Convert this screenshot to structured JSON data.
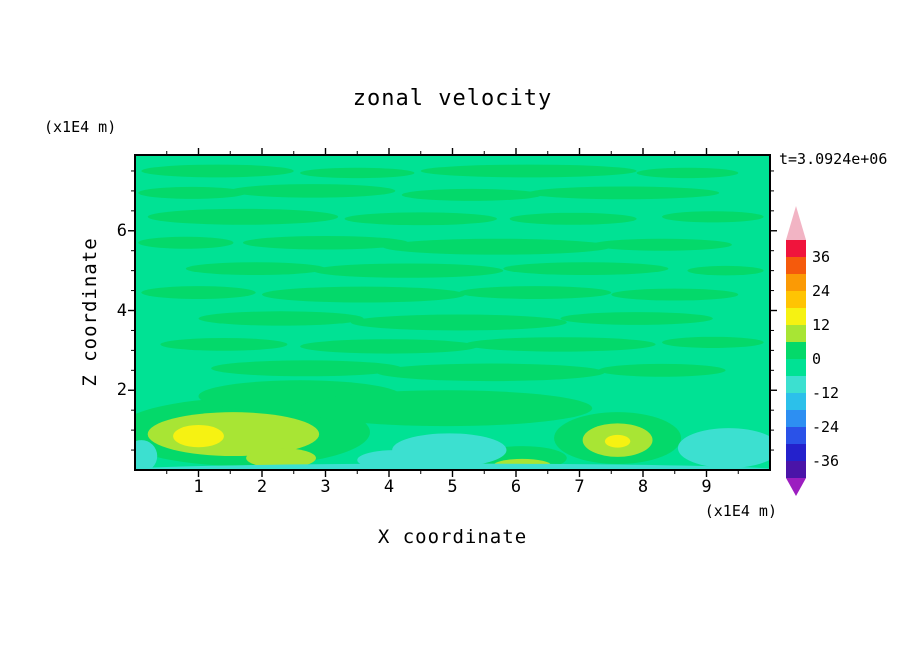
{
  "title": "zonal velocity",
  "time_label": "t=3.0924e+06",
  "axes": {
    "x_label": "X coordinate",
    "x_unit_label": "(x1E4 m)",
    "y_label": "Z coordinate",
    "y_unit_label": "(x1E4 m)",
    "x_ticks": [
      1,
      2,
      3,
      4,
      5,
      6,
      7,
      8,
      9
    ],
    "y_ticks": [
      2,
      4,
      6
    ]
  },
  "colorbar": {
    "labels": [
      "36",
      "24",
      "12",
      "0",
      "-12",
      "-24",
      "-36"
    ],
    "band_colors": [
      "#f0143c",
      "#f55a0c",
      "#fb9a05",
      "#ffc403",
      "#f6f212",
      "#a8e534",
      "#04d96a",
      "#00e294",
      "#3ce0d0",
      "#2cc0ea",
      "#2d8ff2",
      "#2a52e8",
      "#2421cc",
      "#4a14a8"
    ],
    "arrow_top_color": "#f2b4c4",
    "arrow_bottom_color": "#9c1ec0"
  },
  "chart_data": {
    "type": "heatmap",
    "title": "zonal velocity",
    "xlabel": "X coordinate (x1E4 m)",
    "ylabel": "Z coordinate (x1E4 m)",
    "time": "t=3.0924e+06",
    "xlim": [
      0,
      10
    ],
    "ylim": [
      0,
      7.9
    ],
    "contour_interval": 6,
    "contour_levels": [
      -42,
      -36,
      -30,
      -24,
      -18,
      -12,
      -6,
      0,
      6,
      12,
      18,
      24,
      30,
      36,
      42
    ],
    "legend_position": "right",
    "background_value": -3,
    "regions": [
      {
        "x": 1.3,
        "z": 7.5,
        "rx": 1.2,
        "rz": 0.16,
        "value": 3
      },
      {
        "x": 3.5,
        "z": 7.45,
        "rx": 0.9,
        "rz": 0.13,
        "value": 3
      },
      {
        "x": 6.2,
        "z": 7.5,
        "rx": 1.7,
        "rz": 0.16,
        "value": 3
      },
      {
        "x": 8.7,
        "z": 7.45,
        "rx": 0.8,
        "rz": 0.13,
        "value": 3
      },
      {
        "x": 0.9,
        "z": 6.95,
        "rx": 0.85,
        "rz": 0.15,
        "value": 3
      },
      {
        "x": 2.8,
        "z": 7.0,
        "rx": 1.3,
        "rz": 0.17,
        "value": 3
      },
      {
        "x": 5.3,
        "z": 6.9,
        "rx": 1.1,
        "rz": 0.15,
        "value": 3
      },
      {
        "x": 7.7,
        "z": 6.95,
        "rx": 1.5,
        "rz": 0.16,
        "value": 3
      },
      {
        "x": 1.7,
        "z": 6.35,
        "rx": 1.5,
        "rz": 0.2,
        "value": 3
      },
      {
        "x": 4.5,
        "z": 6.3,
        "rx": 1.2,
        "rz": 0.16,
        "value": 3
      },
      {
        "x": 6.9,
        "z": 6.3,
        "rx": 1.0,
        "rz": 0.15,
        "value": 3
      },
      {
        "x": 9.1,
        "z": 6.35,
        "rx": 0.8,
        "rz": 0.14,
        "value": 3
      },
      {
        "x": 0.8,
        "z": 5.7,
        "rx": 0.75,
        "rz": 0.15,
        "value": 3
      },
      {
        "x": 3.0,
        "z": 5.7,
        "rx": 1.3,
        "rz": 0.17,
        "value": 3
      },
      {
        "x": 5.7,
        "z": 5.6,
        "rx": 1.8,
        "rz": 0.2,
        "value": 3
      },
      {
        "x": 8.3,
        "z": 5.65,
        "rx": 1.1,
        "rz": 0.15,
        "value": 3
      },
      {
        "x": 1.9,
        "z": 5.05,
        "rx": 1.1,
        "rz": 0.16,
        "value": 3
      },
      {
        "x": 4.3,
        "z": 5.0,
        "rx": 1.5,
        "rz": 0.18,
        "value": 3
      },
      {
        "x": 7.1,
        "z": 5.05,
        "rx": 1.3,
        "rz": 0.16,
        "value": 3
      },
      {
        "x": 9.3,
        "z": 5.0,
        "rx": 0.6,
        "rz": 0.12,
        "value": 3
      },
      {
        "x": 1.0,
        "z": 4.45,
        "rx": 0.9,
        "rz": 0.16,
        "value": 3
      },
      {
        "x": 3.6,
        "z": 4.4,
        "rx": 1.6,
        "rz": 0.2,
        "value": 3
      },
      {
        "x": 6.3,
        "z": 4.45,
        "rx": 1.2,
        "rz": 0.16,
        "value": 3
      },
      {
        "x": 8.5,
        "z": 4.4,
        "rx": 1.0,
        "rz": 0.15,
        "value": 3
      },
      {
        "x": 2.3,
        "z": 3.8,
        "rx": 1.3,
        "rz": 0.18,
        "value": 3
      },
      {
        "x": 5.1,
        "z": 3.7,
        "rx": 1.7,
        "rz": 0.2,
        "value": 3
      },
      {
        "x": 7.9,
        "z": 3.8,
        "rx": 1.2,
        "rz": 0.16,
        "value": 3
      },
      {
        "x": 1.4,
        "z": 3.15,
        "rx": 1.0,
        "rz": 0.16,
        "value": 3
      },
      {
        "x": 4.0,
        "z": 3.1,
        "rx": 1.4,
        "rz": 0.18,
        "value": 3
      },
      {
        "x": 6.7,
        "z": 3.15,
        "rx": 1.5,
        "rz": 0.18,
        "value": 3
      },
      {
        "x": 9.1,
        "z": 3.2,
        "rx": 0.8,
        "rz": 0.14,
        "value": 3
      },
      {
        "x": 2.7,
        "z": 2.55,
        "rx": 1.5,
        "rz": 0.2,
        "value": 3
      },
      {
        "x": 5.6,
        "z": 2.45,
        "rx": 1.8,
        "rz": 0.22,
        "value": 3
      },
      {
        "x": 8.3,
        "z": 2.5,
        "rx": 1.0,
        "rz": 0.16,
        "value": 3
      },
      {
        "x": 1.7,
        "z": 0.95,
        "rx": 2.0,
        "rz": 0.85,
        "value": 3
      },
      {
        "x": 2.6,
        "z": 1.85,
        "rx": 1.6,
        "rz": 0.4,
        "value": 3
      },
      {
        "x": 4.9,
        "z": 1.55,
        "rx": 2.3,
        "rz": 0.45,
        "value": 3
      },
      {
        "x": 7.6,
        "z": 0.8,
        "rx": 1.0,
        "rz": 0.65,
        "value": 3
      },
      {
        "x": 6.1,
        "z": 0.3,
        "rx": 0.7,
        "rz": 0.3,
        "value": 3
      },
      {
        "x": 1.55,
        "z": 0.9,
        "rx": 1.35,
        "rz": 0.55,
        "value": 9
      },
      {
        "x": 2.3,
        "z": 0.3,
        "rx": 0.55,
        "rz": 0.25,
        "value": 9
      },
      {
        "x": 7.6,
        "z": 0.75,
        "rx": 0.55,
        "rz": 0.42,
        "value": 9
      },
      {
        "x": 6.1,
        "z": 0.12,
        "rx": 0.45,
        "rz": 0.16,
        "value": 9
      },
      {
        "x": 1.0,
        "z": 0.85,
        "rx": 0.4,
        "rz": 0.28,
        "value": 15
      },
      {
        "x": 7.6,
        "z": 0.72,
        "rx": 0.2,
        "rz": 0.16,
        "value": 15
      },
      {
        "x": 4.95,
        "z": 0.5,
        "rx": 0.9,
        "rz": 0.42,
        "value": -9
      },
      {
        "x": 4.1,
        "z": 0.25,
        "rx": 0.6,
        "rz": 0.25,
        "value": -9
      },
      {
        "x": 9.35,
        "z": 0.55,
        "rx": 0.8,
        "rz": 0.5,
        "value": -9
      },
      {
        "x": 0.1,
        "z": 0.35,
        "rx": 0.25,
        "rz": 0.4,
        "value": -9
      },
      {
        "x": 5.0,
        "z": 0.0,
        "rx": 5.1,
        "rz": 0.16,
        "value": -9
      }
    ]
  }
}
